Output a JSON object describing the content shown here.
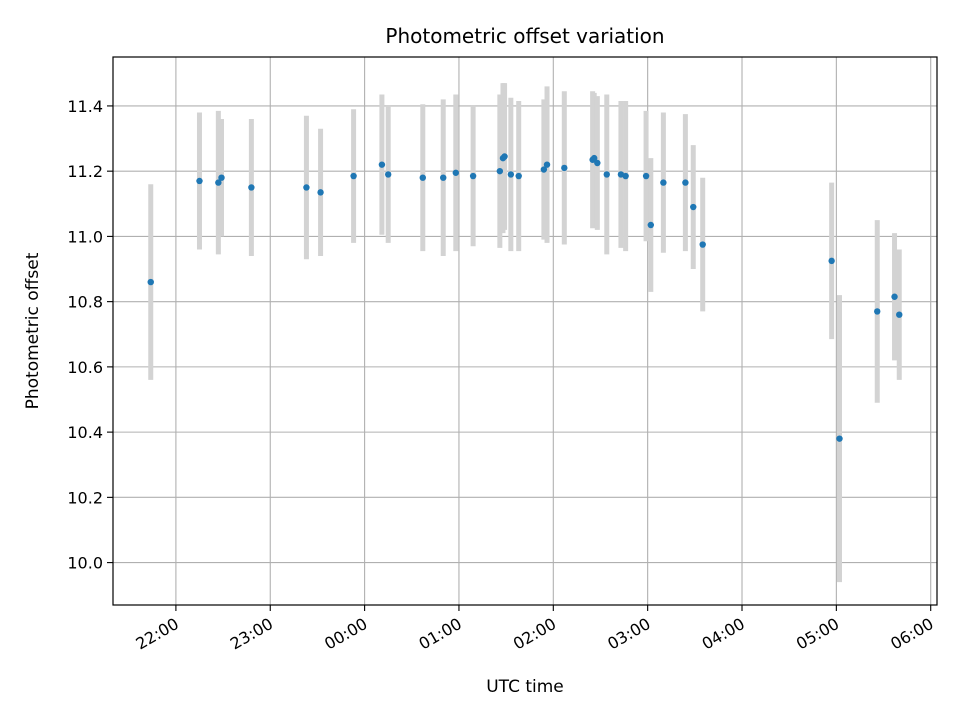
{
  "chart_data": {
    "type": "scatter",
    "title": "Photometric offset variation",
    "xlabel": "UTC time",
    "ylabel": "Photometric offset",
    "xlim": [
      "21:20",
      "06:04"
    ],
    "ylim": [
      9.87,
      11.55
    ],
    "yticks": [
      10.0,
      10.2,
      10.4,
      10.6,
      10.8,
      11.0,
      11.2,
      11.4
    ],
    "xticks": [
      "22:00",
      "23:00",
      "00:00",
      "01:00",
      "02:00",
      "03:00",
      "04:00",
      "05:00",
      "06:00"
    ],
    "grid": true,
    "point_color": "#1f77b4",
    "errorbar_color": "#d3d3d3",
    "points": [
      {
        "t": "21:44",
        "y": 10.86,
        "err": 0.3
      },
      {
        "t": "22:15",
        "y": 11.17,
        "err": 0.21
      },
      {
        "t": "22:27",
        "y": 11.165,
        "err": 0.22
      },
      {
        "t": "22:29",
        "y": 11.18,
        "err": 0.18
      },
      {
        "t": "22:48",
        "y": 11.15,
        "err": 0.21
      },
      {
        "t": "23:23",
        "y": 11.15,
        "err": 0.22
      },
      {
        "t": "23:32",
        "y": 11.135,
        "err": 0.195
      },
      {
        "t": "23:53",
        "y": 11.185,
        "err": 0.205
      },
      {
        "t": "00:11",
        "y": 11.22,
        "err": 0.215
      },
      {
        "t": "00:15",
        "y": 11.19,
        "err": 0.21
      },
      {
        "t": "00:37",
        "y": 11.18,
        "err": 0.225
      },
      {
        "t": "00:50",
        "y": 11.18,
        "err": 0.24
      },
      {
        "t": "00:58",
        "y": 11.195,
        "err": 0.24
      },
      {
        "t": "01:09",
        "y": 11.185,
        "err": 0.215
      },
      {
        "t": "01:26",
        "y": 11.2,
        "err": 0.235
      },
      {
        "t": "01:28",
        "y": 11.24,
        "err": 0.23
      },
      {
        "t": "01:29",
        "y": 11.245,
        "err": 0.225
      },
      {
        "t": "01:33",
        "y": 11.19,
        "err": 0.235
      },
      {
        "t": "01:38",
        "y": 11.185,
        "err": 0.23
      },
      {
        "t": "01:54",
        "y": 11.205,
        "err": 0.215
      },
      {
        "t": "01:56",
        "y": 11.22,
        "err": 0.24
      },
      {
        "t": "02:07",
        "y": 11.21,
        "err": 0.235
      },
      {
        "t": "02:25",
        "y": 11.235,
        "err": 0.21
      },
      {
        "t": "02:26",
        "y": 11.24,
        "err": 0.2
      },
      {
        "t": "02:28",
        "y": 11.225,
        "err": 0.205
      },
      {
        "t": "02:34",
        "y": 11.19,
        "err": 0.245
      },
      {
        "t": "02:43",
        "y": 11.19,
        "err": 0.225
      },
      {
        "t": "02:46",
        "y": 11.185,
        "err": 0.23
      },
      {
        "t": "02:59",
        "y": 11.185,
        "err": 0.2
      },
      {
        "t": "03:02",
        "y": 11.035,
        "err": 0.205
      },
      {
        "t": "03:10",
        "y": 11.165,
        "err": 0.215
      },
      {
        "t": "03:24",
        "y": 11.165,
        "err": 0.21
      },
      {
        "t": "03:29",
        "y": 11.09,
        "err": 0.19
      },
      {
        "t": "03:35",
        "y": 10.975,
        "err": 0.205
      },
      {
        "t": "04:57",
        "y": 10.925,
        "err": 0.24
      },
      {
        "t": "05:02",
        "y": 10.38,
        "err": 0.44
      },
      {
        "t": "05:26",
        "y": 10.77,
        "err": 0.28
      },
      {
        "t": "05:37",
        "y": 10.815,
        "err": 0.195
      },
      {
        "t": "05:40",
        "y": 10.76,
        "err": 0.2
      }
    ]
  }
}
